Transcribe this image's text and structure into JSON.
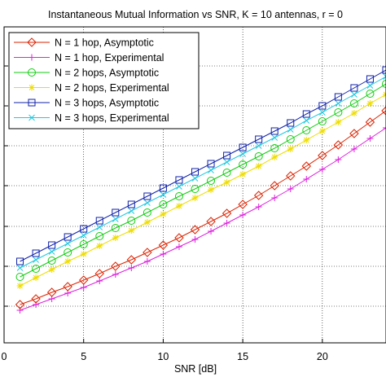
{
  "chart_data": {
    "type": "line",
    "title": "Instantaneous Mutual Information vs SNR, K = 10 antennas, r = 0",
    "xlabel": "SNR [dB]",
    "ylabel": "",
    "xlim": [
      0,
      24
    ],
    "x_ticks": [
      0,
      5,
      10,
      15,
      20
    ],
    "x_tick_labels": [
      "0",
      "5",
      "10",
      "15",
      "20"
    ],
    "grid": true,
    "legend_position": "top-left",
    "x": [
      1,
      2,
      3,
      4,
      5,
      6,
      7,
      8,
      9,
      10,
      11,
      12,
      13,
      14,
      15,
      16,
      17,
      18,
      19,
      20,
      21,
      22,
      23,
      24
    ],
    "series": [
      {
        "name": "N = 1 hop, Asymptotic",
        "color": "#dd2200",
        "marker": "diamond",
        "values": [
          374,
          367,
          359,
          352,
          344,
          336,
          327,
          319,
          310,
          301,
          292,
          282,
          272,
          262,
          251,
          240,
          228,
          216,
          204,
          191,
          178,
          164,
          150,
          136
        ]
      },
      {
        "name": "N = 1 hop, Experimental",
        "color": "#dd22dd",
        "marker": "plus",
        "values": [
          381,
          374,
          367,
          360,
          353,
          345,
          337,
          329,
          321,
          312,
          303,
          294,
          284,
          274,
          264,
          254,
          243,
          232,
          220,
          208,
          196,
          183,
          170,
          157
        ]
      },
      {
        "name": "N = 2 hops, Asymptotic",
        "color": "#11cc11",
        "marker": "circle",
        "values": [
          340,
          330,
          320,
          310,
          300,
          290,
          280,
          271,
          261,
          251,
          241,
          232,
          222,
          212,
          202,
          192,
          182,
          171,
          160,
          149,
          138,
          127,
          115,
          103
        ]
      },
      {
        "name": "N = 2 hops, Experimental",
        "color": "#eedd00",
        "marker": "asterisk",
        "values": [
          351,
          341,
          331,
          321,
          312,
          302,
          292,
          283,
          273,
          263,
          253,
          243,
          233,
          224,
          214,
          204,
          193,
          183,
          172,
          161,
          150,
          139,
          127,
          116
        ]
      },
      {
        "name": "N = 3 hops, Asymptotic",
        "color": "#1122aa",
        "marker": "square",
        "values": [
          321,
          311,
          301,
          291,
          281,
          271,
          261,
          251,
          241,
          231,
          221,
          211,
          201,
          191,
          181,
          171,
          161,
          151,
          140,
          130,
          119,
          108,
          97,
          86
        ]
      },
      {
        "name": "N = 3 hops, Experimental",
        "color": "#22c8e0",
        "marker": "cross",
        "values": [
          329,
          319,
          309,
          299,
          289,
          279,
          269,
          259,
          249,
          239,
          229,
          219,
          209,
          199,
          189,
          179,
          169,
          159,
          148,
          138,
          127,
          116,
          105,
          94
        ]
      }
    ]
  }
}
